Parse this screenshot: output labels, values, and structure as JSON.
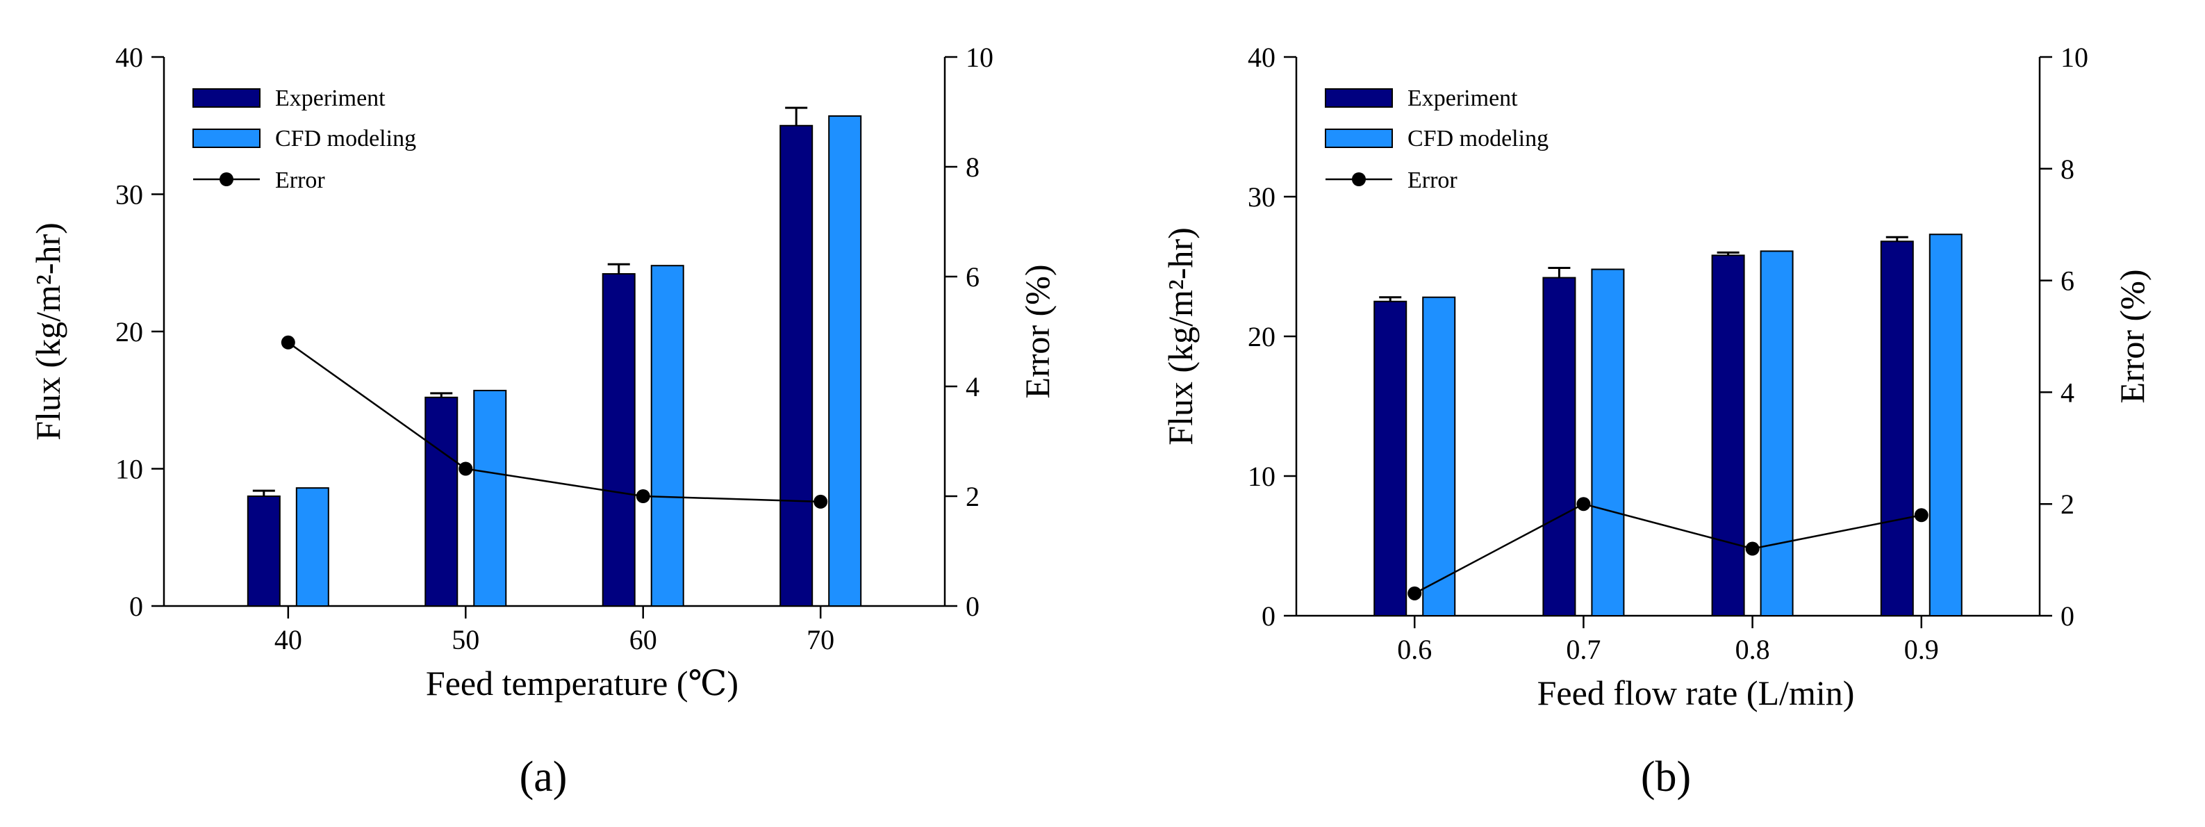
{
  "colors": {
    "experiment": "#000080",
    "cfd": "#1e90ff",
    "error": "#000000"
  },
  "chart_data": [
    {
      "type": "bar",
      "panel_label": "(a)",
      "xlabel": "Feed temperature (℃)",
      "ylabel_left": "Flux (kg/m²-hr)",
      "ylabel_right": "Error (%)",
      "categories": [
        "40",
        "50",
        "60",
        "70"
      ],
      "x": [
        40,
        50,
        60,
        70
      ],
      "xlim": [
        33,
        77
      ],
      "ylim_left": [
        0,
        40
      ],
      "ylim_right": [
        0,
        10
      ],
      "yticks_left": [
        "0",
        "10",
        "20",
        "30",
        "40"
      ],
      "yticks_right": [
        "0",
        "2",
        "4",
        "6",
        "8",
        "10"
      ],
      "series": [
        {
          "name": "Experiment",
          "axis": "left",
          "kind": "bar",
          "values": [
            8.0,
            15.2,
            24.2,
            35.0
          ],
          "error": [
            0.4,
            0.3,
            0.7,
            1.3
          ]
        },
        {
          "name": "CFD modeling",
          "axis": "left",
          "kind": "bar",
          "values": [
            8.6,
            15.7,
            24.8,
            35.7
          ]
        },
        {
          "name": "Error",
          "axis": "right",
          "kind": "line",
          "values": [
            4.8,
            2.5,
            2.0,
            1.9
          ]
        }
      ]
    },
    {
      "type": "bar",
      "panel_label": "(b)",
      "xlabel": "Feed flow rate (L/min)",
      "ylabel_left": "Flux (kg/m²-hr)",
      "ylabel_right": "Error (%)",
      "categories": [
        "0.6",
        "0.7",
        "0.8",
        "0.9"
      ],
      "x": [
        0.6,
        0.7,
        0.8,
        0.9
      ],
      "xlim": [
        0.53,
        0.97
      ],
      "ylim_left": [
        0,
        40
      ],
      "ylim_right": [
        0,
        10
      ],
      "yticks_left": [
        "0",
        "10",
        "20",
        "30",
        "40"
      ],
      "yticks_right": [
        "0",
        "2",
        "4",
        "6",
        "8",
        "10"
      ],
      "series": [
        {
          "name": "Experiment",
          "axis": "left",
          "kind": "bar",
          "values": [
            22.5,
            24.2,
            25.8,
            26.8
          ],
          "error": [
            0.3,
            0.7,
            0.2,
            0.3
          ]
        },
        {
          "name": "CFD modeling",
          "axis": "left",
          "kind": "bar",
          "values": [
            22.8,
            24.8,
            26.1,
            27.3
          ]
        },
        {
          "name": "Error",
          "axis": "right",
          "kind": "line",
          "values": [
            0.4,
            2.0,
            1.2,
            1.8
          ]
        }
      ]
    }
  ]
}
